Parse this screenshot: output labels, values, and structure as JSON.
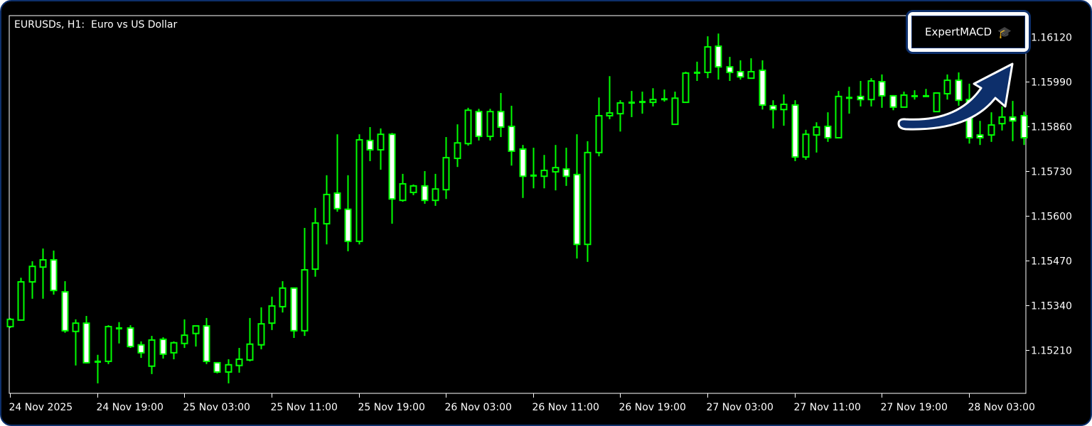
{
  "header": {
    "title": "EURUSDs, H1:  Euro vs US Dollar"
  },
  "expert": {
    "label": "ExpertMACD",
    "icon": "graduation-cap-icon",
    "badge_color": "#0d2f6b"
  },
  "colors": {
    "background": "#000000",
    "candle_outline": "#00ff00",
    "bear_fill": "#ffffff",
    "bull_fill": "#000000",
    "axis": "#ffffff",
    "arrow": "#0d2f6b"
  },
  "chart_data": {
    "type": "candlestick",
    "symbol": "EURUSDs",
    "timeframe": "H1",
    "y_ticks": [
      "1.16120",
      "1.15990",
      "1.15860",
      "1.15730",
      "1.15600",
      "1.15470",
      "1.15340",
      "1.15210"
    ],
    "x_ticks": [
      "24 Nov 2025",
      "24 Nov 19:00",
      "25 Nov 03:00",
      "25 Nov 11:00",
      "25 Nov 19:00",
      "26 Nov 03:00",
      "26 Nov 11:00",
      "26 Nov 19:00",
      "27 Nov 03:00",
      "27 Nov 11:00",
      "27 Nov 19:00",
      "28 Nov 03:00"
    ],
    "x_tick_every_bars": 8,
    "ylim": [
      1.15084,
      1.16182
    ],
    "ohlc_fields": [
      "open",
      "high",
      "low",
      "close"
    ],
    "candles": [
      [
        1.15278,
        1.15303,
        1.15274,
        1.15299
      ],
      [
        1.15297,
        1.1542,
        1.15297,
        1.15408
      ],
      [
        1.15408,
        1.15468,
        1.15359,
        1.15453
      ],
      [
        1.15451,
        1.15505,
        1.15359,
        1.15472
      ],
      [
        1.15472,
        1.15499,
        1.15371,
        1.15383
      ],
      [
        1.15379,
        1.1541,
        1.1526,
        1.15266
      ],
      [
        1.15264,
        1.15299,
        1.15165,
        1.15288
      ],
      [
        1.15288,
        1.15309,
        1.15171,
        1.15173
      ],
      [
        1.15177,
        1.15196,
        1.15113,
        1.15175
      ],
      [
        1.15177,
        1.15282,
        1.15169,
        1.15278
      ],
      [
        1.15274,
        1.15291,
        1.15229,
        1.15272
      ],
      [
        1.15274,
        1.15282,
        1.15216,
        1.1522
      ],
      [
        1.15225,
        1.15235,
        1.15187,
        1.15202
      ],
      [
        1.15163,
        1.15251,
        1.1514,
        1.15239
      ],
      [
        1.15241,
        1.15247,
        1.15185,
        1.15198
      ],
      [
        1.15202,
        1.15235,
        1.15183,
        1.15231
      ],
      [
        1.15229,
        1.15299,
        1.15216,
        1.15253
      ],
      [
        1.15258,
        1.1528,
        1.1522,
        1.1528
      ],
      [
        1.1528,
        1.15303,
        1.15169,
        1.15177
      ],
      [
        1.15173,
        1.15173,
        1.15142,
        1.15146
      ],
      [
        1.15146,
        1.15183,
        1.15113,
        1.15167
      ],
      [
        1.15165,
        1.15216,
        1.15144,
        1.15183
      ],
      [
        1.15181,
        1.15303,
        1.15177,
        1.15227
      ],
      [
        1.15225,
        1.15334,
        1.15212,
        1.15286
      ],
      [
        1.15288,
        1.15365,
        1.15268,
        1.15338
      ],
      [
        1.15336,
        1.1541,
        1.15319,
        1.1539
      ],
      [
        1.1539,
        1.1539,
        1.15245,
        1.15266
      ],
      [
        1.15266,
        1.15565,
        1.15251,
        1.15443
      ],
      [
        1.15445,
        1.15623,
        1.15423,
        1.15579
      ],
      [
        1.15577,
        1.15718,
        1.15517,
        1.15662
      ],
      [
        1.15666,
        1.15837,
        1.15612,
        1.15621
      ],
      [
        1.15619,
        1.15718,
        1.15497,
        1.15526
      ],
      [
        1.15526,
        1.15837,
        1.15517,
        1.15821
      ],
      [
        1.15819,
        1.15858,
        1.15759,
        1.15792
      ],
      [
        1.15792,
        1.15854,
        1.15734,
        1.15837
      ],
      [
        1.15837,
        1.15841,
        1.15577,
        1.15649
      ],
      [
        1.15645,
        1.15722,
        1.15641,
        1.15693
      ],
      [
        1.15668,
        1.15691,
        1.1566,
        1.15687
      ],
      [
        1.15687,
        1.1573,
        1.15635,
        1.15645
      ],
      [
        1.15645,
        1.15722,
        1.15629,
        1.15678
      ],
      [
        1.15676,
        1.15829,
        1.15649,
        1.15769
      ],
      [
        1.15767,
        1.15866,
        1.15742,
        1.15812
      ],
      [
        1.1581,
        1.15914,
        1.15804,
        1.15907
      ],
      [
        1.15903,
        1.15911,
        1.15819,
        1.15831
      ],
      [
        1.15831,
        1.15911,
        1.15819,
        1.15903
      ],
      [
        1.15903,
        1.15957,
        1.15829,
        1.15858
      ],
      [
        1.1586,
        1.1592,
        1.15746,
        1.15788
      ],
      [
        1.15794,
        1.15806,
        1.15652,
        1.15715
      ],
      [
        1.15718,
        1.15798,
        1.1568,
        1.15716
      ],
      [
        1.15715,
        1.15777,
        1.1568,
        1.15732
      ],
      [
        1.15728,
        1.15806,
        1.15674,
        1.1574
      ],
      [
        1.15736,
        1.15798,
        1.15687,
        1.15715
      ],
      [
        1.1572,
        1.15837,
        1.15476,
        1.15517
      ],
      [
        1.15517,
        1.15817,
        1.15466,
        1.15784
      ],
      [
        1.15784,
        1.15944,
        1.15773,
        1.15891
      ],
      [
        1.15891,
        1.16006,
        1.15881,
        1.15899
      ],
      [
        1.15897,
        1.15936,
        1.15845,
        1.15928
      ],
      [
        1.1593,
        1.15963,
        1.15887,
        1.15929
      ],
      [
        1.15932,
        1.15961,
        1.15897,
        1.15931
      ],
      [
        1.1593,
        1.15971,
        1.15918,
        1.15938
      ],
      [
        1.1594,
        1.15967,
        1.15932,
        1.15939
      ],
      [
        1.15866,
        1.15961,
        1.15866,
        1.15942
      ],
      [
        1.1593,
        1.16019,
        1.1593,
        1.16015
      ],
      [
        1.16015,
        1.16048,
        1.15992,
        1.16017
      ],
      [
        1.16017,
        1.16122,
        1.16,
        1.16091
      ],
      [
        1.16093,
        1.1613,
        1.15996,
        1.16033
      ],
      [
        1.16033,
        1.16062,
        1.15992,
        1.16017
      ],
      [
        1.16019,
        1.16052,
        1.15996,
        1.16004
      ],
      [
        1.16,
        1.16058,
        1.16,
        1.16019
      ],
      [
        1.16023,
        1.16052,
        1.15909,
        1.15922
      ],
      [
        1.1592,
        1.15936,
        1.15854,
        1.15909
      ],
      [
        1.15909,
        1.15953,
        1.15862,
        1.15924
      ],
      [
        1.15922,
        1.15936,
        1.15759,
        1.15771
      ],
      [
        1.15771,
        1.1585,
        1.15763,
        1.15837
      ],
      [
        1.15835,
        1.15872,
        1.15784,
        1.15858
      ],
      [
        1.1586,
        1.15901,
        1.15815,
        1.15827
      ],
      [
        1.15827,
        1.15963,
        1.15827,
        1.15947
      ],
      [
        1.15944,
        1.15975,
        1.15897,
        1.15943
      ],
      [
        1.15947,
        1.15992,
        1.15918,
        1.15938
      ],
      [
        1.15938,
        1.16,
        1.15918,
        1.15992
      ],
      [
        1.1599,
        1.16011,
        1.15914,
        1.15949
      ],
      [
        1.15949,
        1.15951,
        1.15907,
        1.15916
      ],
      [
        1.15916,
        1.15961,
        1.15916,
        1.15951
      ],
      [
        1.15949,
        1.15965,
        1.15938,
        1.15948
      ],
      [
        1.15949,
        1.15969,
        1.15949,
        1.15949
      ],
      [
        1.15903,
        1.15957,
        1.15903,
        1.15957
      ],
      [
        1.15955,
        1.16011,
        1.15938,
        1.15994
      ],
      [
        1.15994,
        1.16017,
        1.1592,
        1.15936
      ],
      [
        1.15938,
        1.15984,
        1.1581,
        1.15827
      ],
      [
        1.15835,
        1.15876,
        1.15806,
        1.15827
      ],
      [
        1.15835,
        1.15901,
        1.15815,
        1.15864
      ],
      [
        1.15868,
        1.15918,
        1.15848,
        1.15887
      ],
      [
        1.15887,
        1.15934,
        1.15817,
        1.15876
      ],
      [
        1.15891,
        1.15903,
        1.15806,
        1.15827
      ]
    ]
  }
}
